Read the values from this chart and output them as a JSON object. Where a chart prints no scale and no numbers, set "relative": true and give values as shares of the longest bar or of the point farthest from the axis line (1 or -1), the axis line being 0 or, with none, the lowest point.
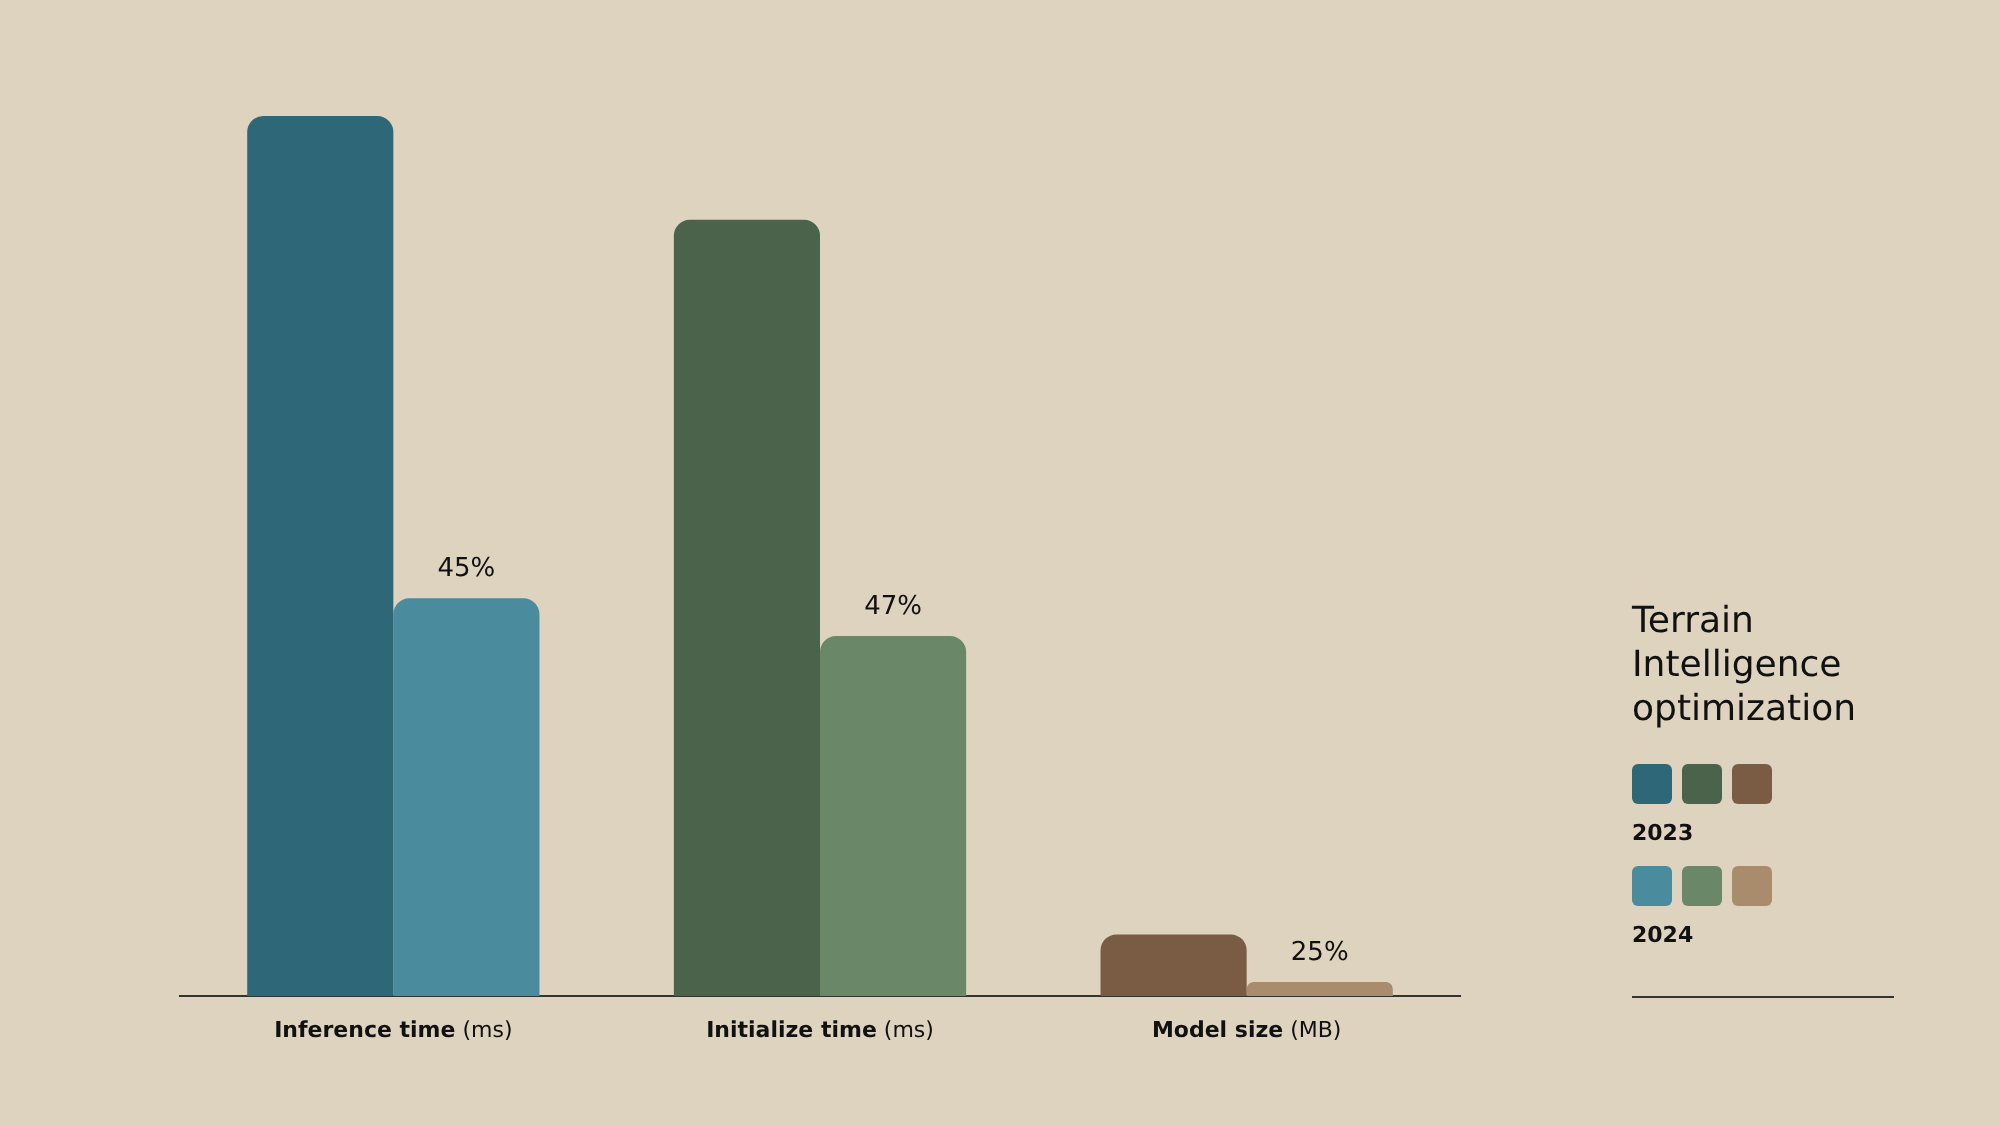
{
  "chart_data": {
    "type": "bar",
    "title": "Terrain Intelligence optimization",
    "relative": true,
    "legend": "right",
    "categories": [
      "Inference time (ms)",
      "Initialize time (ms)",
      "Model size (MB)"
    ],
    "series": [
      {
        "name": "2023",
        "colors": [
          "#2e6878",
          "#4c634b",
          "#7a5c45"
        ],
        "values": [
          1,
          0.882,
          0.07
        ]
      },
      {
        "name": "2024",
        "colors": [
          "#4a8c9e",
          "#6a8868",
          "#a88c6c"
        ],
        "values": [
          0.452,
          0.409,
          0.016
        ]
      }
    ],
    "annotations": [
      {
        "text": "45%",
        "x": "Inference time (ms)",
        "y": 0.452
      },
      {
        "text": "47%",
        "x": "Initialize time (ms)",
        "y": 0.409
      },
      {
        "text": "25%",
        "x": "Model size (MB)",
        "y": 0.016
      }
    ]
  }
}
